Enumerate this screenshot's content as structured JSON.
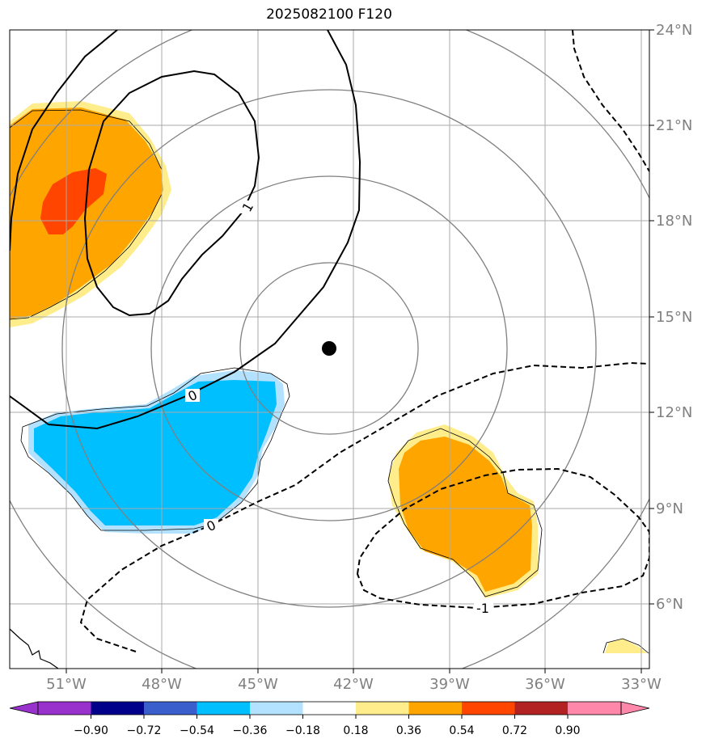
{
  "title": "2025082100 F120",
  "map": {
    "lon_labels": [
      "51°W",
      "48°W",
      "45°W",
      "42°W",
      "39°W",
      "36°W",
      "33°W"
    ],
    "lat_labels": [
      "24°N",
      "21°N",
      "18°N",
      "15°N",
      "12°N",
      "9°N",
      "6°N"
    ],
    "gridline_color": "#aaaaaa",
    "range_ring_color": "#808080",
    "storm_center": {
      "lon": -42.7,
      "lat": 14.0
    },
    "contour_labels": [
      "1",
      "0",
      "0",
      "-1"
    ],
    "coast_color": "#000000"
  },
  "colorbar": {
    "tick_labels": [
      "−0.90",
      "−0.72",
      "−0.54",
      "−0.36",
      "−0.18",
      "0.18",
      "0.36",
      "0.54",
      "0.72",
      "0.90"
    ],
    "colors": [
      "#9932cc",
      "#00008b",
      "#3a5fcd",
      "#00bfff",
      "#b2e2ff",
      "#ffffff",
      "#ffec8b",
      "#ffa500",
      "#ff4500",
      "#b22222",
      "#ff88aa",
      "#ff88aa"
    ],
    "extend": "both"
  }
}
